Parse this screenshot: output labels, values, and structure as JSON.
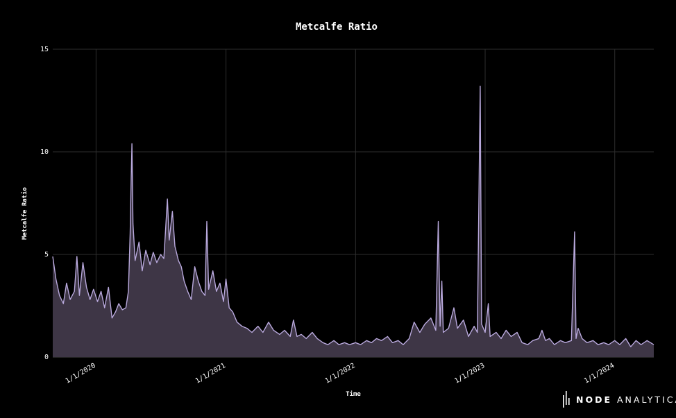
{
  "chart_data": {
    "type": "area",
    "title": "Metcalfe Ratio",
    "xlabel": "Time",
    "ylabel": "Metcalfe Ratio",
    "x_range": [
      "2019-09-01",
      "2024-04-20"
    ],
    "ylim": [
      0,
      15
    ],
    "y_ticks": [
      0,
      5,
      10,
      15
    ],
    "x_ticks": [
      {
        "date": "2020-01-01",
        "label": "1/1/2020"
      },
      {
        "date": "2021-01-01",
        "label": "1/1/2021"
      },
      {
        "date": "2022-01-01",
        "label": "1/1/2022"
      },
      {
        "date": "2023-01-01",
        "label": "1/1/2023"
      },
      {
        "date": "2024-01-01",
        "label": "1/1/2024"
      }
    ],
    "grid": true,
    "series": [
      {
        "color": "#b9a9dd",
        "fill": "#3e3646",
        "points": [
          [
            "2019-09-01",
            4.9
          ],
          [
            "2019-09-10",
            3.8
          ],
          [
            "2019-09-20",
            3.0
          ],
          [
            "2019-10-01",
            2.6
          ],
          [
            "2019-10-10",
            3.6
          ],
          [
            "2019-10-20",
            2.8
          ],
          [
            "2019-11-01",
            3.2
          ],
          [
            "2019-11-08",
            4.9
          ],
          [
            "2019-11-15",
            3.0
          ],
          [
            "2019-11-25",
            4.6
          ],
          [
            "2019-12-05",
            3.4
          ],
          [
            "2019-12-15",
            2.8
          ],
          [
            "2019-12-25",
            3.3
          ],
          [
            "2020-01-05",
            2.7
          ],
          [
            "2020-01-15",
            3.2
          ],
          [
            "2020-01-25",
            2.4
          ],
          [
            "2020-02-05",
            3.4
          ],
          [
            "2020-02-15",
            1.9
          ],
          [
            "2020-02-25",
            2.2
          ],
          [
            "2020-03-05",
            2.6
          ],
          [
            "2020-03-15",
            2.3
          ],
          [
            "2020-03-25",
            2.4
          ],
          [
            "2020-04-01",
            3.2
          ],
          [
            "2020-04-06",
            6.0
          ],
          [
            "2020-04-09",
            8.7
          ],
          [
            "2020-04-11",
            10.4
          ],
          [
            "2020-04-14",
            6.5
          ],
          [
            "2020-04-20",
            4.7
          ],
          [
            "2020-05-01",
            5.6
          ],
          [
            "2020-05-10",
            4.2
          ],
          [
            "2020-05-20",
            5.2
          ],
          [
            "2020-06-01",
            4.5
          ],
          [
            "2020-06-10",
            5.1
          ],
          [
            "2020-06-20",
            4.6
          ],
          [
            "2020-07-01",
            5.0
          ],
          [
            "2020-07-10",
            4.8
          ],
          [
            "2020-07-20",
            7.7
          ],
          [
            "2020-07-25",
            5.7
          ],
          [
            "2020-08-03",
            7.1
          ],
          [
            "2020-08-10",
            5.4
          ],
          [
            "2020-08-20",
            4.7
          ],
          [
            "2020-08-28",
            4.4
          ],
          [
            "2020-09-05",
            3.7
          ],
          [
            "2020-09-15",
            3.2
          ],
          [
            "2020-09-25",
            2.8
          ],
          [
            "2020-10-05",
            4.4
          ],
          [
            "2020-10-15",
            3.7
          ],
          [
            "2020-10-25",
            3.2
          ],
          [
            "2020-11-03",
            3.0
          ],
          [
            "2020-11-08",
            6.6
          ],
          [
            "2020-11-13",
            3.3
          ],
          [
            "2020-11-25",
            4.2
          ],
          [
            "2020-12-05",
            3.2
          ],
          [
            "2020-12-15",
            3.6
          ],
          [
            "2020-12-25",
            2.7
          ],
          [
            "2021-01-01",
            3.8
          ],
          [
            "2021-01-10",
            2.4
          ],
          [
            "2021-01-20",
            2.2
          ],
          [
            "2021-02-01",
            1.7
          ],
          [
            "2021-02-15",
            1.5
          ],
          [
            "2021-03-01",
            1.4
          ],
          [
            "2021-03-15",
            1.2
          ],
          [
            "2021-04-01",
            1.5
          ],
          [
            "2021-04-15",
            1.2
          ],
          [
            "2021-05-01",
            1.7
          ],
          [
            "2021-05-15",
            1.3
          ],
          [
            "2021-06-01",
            1.1
          ],
          [
            "2021-06-15",
            1.3
          ],
          [
            "2021-07-01",
            1.0
          ],
          [
            "2021-07-10",
            1.8
          ],
          [
            "2021-07-20",
            1.0
          ],
          [
            "2021-08-01",
            1.1
          ],
          [
            "2021-08-15",
            0.9
          ],
          [
            "2021-09-01",
            1.2
          ],
          [
            "2021-09-15",
            0.9
          ],
          [
            "2021-10-01",
            0.7
          ],
          [
            "2021-10-15",
            0.6
          ],
          [
            "2021-11-01",
            0.8
          ],
          [
            "2021-11-15",
            0.6
          ],
          [
            "2021-12-01",
            0.7
          ],
          [
            "2021-12-15",
            0.6
          ],
          [
            "2022-01-01",
            0.7
          ],
          [
            "2022-01-15",
            0.6
          ],
          [
            "2022-02-01",
            0.8
          ],
          [
            "2022-02-15",
            0.7
          ],
          [
            "2022-03-01",
            0.9
          ],
          [
            "2022-03-15",
            0.8
          ],
          [
            "2022-04-01",
            1.0
          ],
          [
            "2022-04-15",
            0.7
          ],
          [
            "2022-05-01",
            0.8
          ],
          [
            "2022-05-15",
            0.6
          ],
          [
            "2022-06-01",
            0.9
          ],
          [
            "2022-06-15",
            1.7
          ],
          [
            "2022-07-01",
            1.2
          ],
          [
            "2022-07-15",
            1.6
          ],
          [
            "2022-08-01",
            1.9
          ],
          [
            "2022-08-15",
            1.3
          ],
          [
            "2022-08-22",
            6.6
          ],
          [
            "2022-08-27",
            1.5
          ],
          [
            "2022-09-01",
            3.7
          ],
          [
            "2022-09-05",
            1.2
          ],
          [
            "2022-09-20",
            1.4
          ],
          [
            "2022-10-05",
            2.4
          ],
          [
            "2022-10-15",
            1.4
          ],
          [
            "2022-11-01",
            1.8
          ],
          [
            "2022-11-15",
            1.0
          ],
          [
            "2022-12-01",
            1.5
          ],
          [
            "2022-12-10",
            1.2
          ],
          [
            "2022-12-18",
            13.2
          ],
          [
            "2022-12-22",
            1.6
          ],
          [
            "2023-01-01",
            1.2
          ],
          [
            "2023-01-10",
            2.6
          ],
          [
            "2023-01-15",
            1.0
          ],
          [
            "2023-02-01",
            1.2
          ],
          [
            "2023-02-15",
            0.9
          ],
          [
            "2023-03-01",
            1.3
          ],
          [
            "2023-03-15",
            1.0
          ],
          [
            "2023-04-01",
            1.2
          ],
          [
            "2023-04-15",
            0.7
          ],
          [
            "2023-05-01",
            0.6
          ],
          [
            "2023-05-15",
            0.8
          ],
          [
            "2023-06-01",
            0.9
          ],
          [
            "2023-06-10",
            1.3
          ],
          [
            "2023-06-20",
            0.8
          ],
          [
            "2023-07-01",
            0.9
          ],
          [
            "2023-07-15",
            0.6
          ],
          [
            "2023-08-01",
            0.8
          ],
          [
            "2023-08-15",
            0.7
          ],
          [
            "2023-09-01",
            0.8
          ],
          [
            "2023-09-10",
            6.1
          ],
          [
            "2023-09-14",
            0.9
          ],
          [
            "2023-09-20",
            1.4
          ],
          [
            "2023-10-01",
            0.9
          ],
          [
            "2023-10-15",
            0.7
          ],
          [
            "2023-11-01",
            0.8
          ],
          [
            "2023-11-15",
            0.6
          ],
          [
            "2023-12-01",
            0.7
          ],
          [
            "2023-12-15",
            0.6
          ],
          [
            "2024-01-01",
            0.8
          ],
          [
            "2024-01-15",
            0.6
          ],
          [
            "2024-02-01",
            0.9
          ],
          [
            "2024-02-15",
            0.5
          ],
          [
            "2024-03-01",
            0.8
          ],
          [
            "2024-03-15",
            0.6
          ],
          [
            "2024-04-01",
            0.8
          ],
          [
            "2024-04-20",
            0.6
          ]
        ]
      }
    ]
  },
  "brand": {
    "name_bold": "NODE",
    "name_light": "ANALYTICA"
  },
  "colors": {
    "background": "#000000",
    "grid": "#2e2e2e",
    "line": "#b9a9dd",
    "fill": "#3e3646"
  }
}
